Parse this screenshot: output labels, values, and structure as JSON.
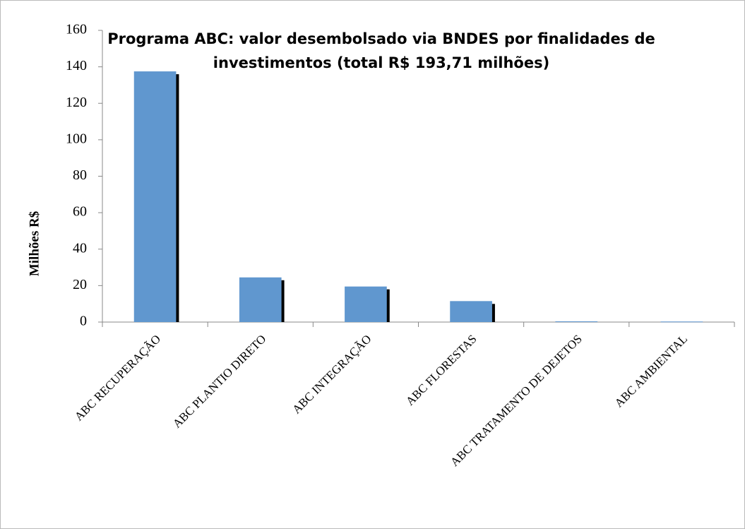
{
  "chart_data": {
    "type": "bar",
    "title": [
      "Programa ABC: valor desembolsado via BNDES por finalidades de",
      "investimentos (total R$ 193,71 milhões)"
    ],
    "y_label": "Milhões R$",
    "categories": [
      "ABC RECUPERAÇÃO",
      "ABC PLANTIO DIRETO",
      "ABC INTEGRAÇÃO",
      "ABC FLORESTAS",
      "ABC TRATAMENTO DE DEJETOS",
      "ABC AMBIENTAL"
    ],
    "values": [
      137.5,
      24.5,
      19.5,
      11.5,
      0.4,
      0.3
    ],
    "color": "#6097cf",
    "ylim": [
      0,
      160
    ],
    "yticks": [
      0,
      20,
      40,
      60,
      80,
      100,
      120,
      140,
      160
    ],
    "grid": false
  }
}
